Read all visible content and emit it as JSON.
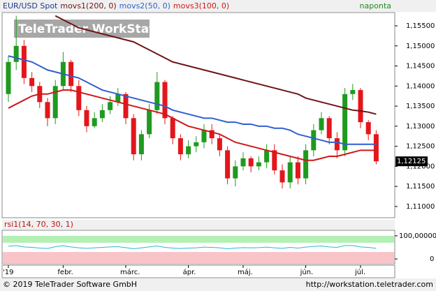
{
  "chart_data": {
    "type": "candlestick",
    "title": "EUR/USD Spot",
    "interval": "naponta",
    "watermark": "TeleTrader WorkStation",
    "up_color": "#1f9a1f",
    "down_color": "#e3161b",
    "categories": [
      "'19",
      null,
      null,
      null,
      null,
      null,
      null,
      "febr.",
      null,
      null,
      null,
      null,
      null,
      null,
      null,
      "márc.",
      null,
      null,
      null,
      null,
      null,
      null,
      null,
      "ápr.",
      null,
      null,
      null,
      null,
      null,
      null,
      "máj.",
      null,
      null,
      null,
      null,
      null,
      null,
      null,
      "jún.",
      null,
      null,
      null,
      null,
      null,
      null,
      "júl.",
      null,
      null
    ],
    "open": [
      1.138,
      1.146,
      1.15,
      1.142,
      1.14,
      1.136,
      1.132,
      1.14,
      1.146,
      1.14,
      1.134,
      1.13,
      1.132,
      1.134,
      1.136,
      1.138,
      1.132,
      1.123,
      1.128,
      1.134,
      1.141,
      1.132,
      1.127,
      1.123,
      1.125,
      1.126,
      1.129,
      1.127,
      1.124,
      1.117,
      1.12,
      1.122,
      1.12,
      1.121,
      1.124,
      1.119,
      1.116,
      1.121,
      1.117,
      1.124,
      1.129,
      1.132,
      1.127,
      1.124,
      1.138,
      1.139,
      1.131,
      1.128
    ],
    "high": [
      1.1475,
      1.1575,
      1.1515,
      1.1435,
      1.141,
      1.137,
      1.1415,
      1.1485,
      1.1465,
      1.1415,
      1.135,
      1.1335,
      1.1355,
      1.1375,
      1.1395,
      1.1385,
      1.133,
      1.129,
      1.1355,
      1.1435,
      1.1415,
      1.1325,
      1.128,
      1.1265,
      1.1275,
      1.1305,
      1.1305,
      1.128,
      1.125,
      1.1215,
      1.1235,
      1.1225,
      1.1225,
      1.1255,
      1.1255,
      1.1205,
      1.1225,
      1.1225,
      1.1255,
      1.1305,
      1.1335,
      1.1325,
      1.1285,
      1.1395,
      1.1405,
      1.1395,
      1.1315,
      1.129
    ],
    "low": [
      1.136,
      1.144,
      1.1405,
      1.1385,
      1.1345,
      1.13,
      1.1305,
      1.139,
      1.1385,
      1.1325,
      1.1285,
      1.1295,
      1.131,
      1.133,
      1.135,
      1.1305,
      1.1215,
      1.1215,
      1.127,
      1.133,
      1.1305,
      1.1255,
      1.1215,
      1.122,
      1.1235,
      1.1245,
      1.1255,
      1.1225,
      1.1155,
      1.115,
      1.119,
      1.1185,
      1.119,
      1.1195,
      1.118,
      1.1145,
      1.1145,
      1.1155,
      1.1155,
      1.1225,
      1.128,
      1.1255,
      1.122,
      1.1225,
      1.1365,
      1.1295,
      1.1265,
      1.1205
    ],
    "close": [
      1.146,
      1.15,
      1.142,
      1.14,
      1.136,
      1.132,
      1.14,
      1.146,
      1.14,
      1.134,
      1.13,
      1.132,
      1.134,
      1.136,
      1.138,
      1.132,
      1.123,
      1.128,
      1.134,
      1.141,
      1.132,
      1.127,
      1.123,
      1.125,
      1.126,
      1.129,
      1.127,
      1.124,
      1.117,
      1.12,
      1.122,
      1.12,
      1.121,
      1.124,
      1.119,
      1.116,
      1.121,
      1.117,
      1.124,
      1.129,
      1.132,
      1.127,
      1.124,
      1.138,
      1.139,
      1.131,
      1.128,
      1.12125
    ],
    "series": [
      {
        "name": "movs1(200, 0)",
        "color": "#6e1414",
        "values": [
          null,
          null,
          null,
          null,
          null,
          null,
          1.1575,
          1.1565,
          1.1555,
          1.1545,
          1.154,
          1.1535,
          1.153,
          1.1525,
          1.152,
          1.1515,
          1.151,
          1.15,
          1.149,
          1.148,
          1.147,
          1.146,
          1.1455,
          1.145,
          1.1445,
          1.144,
          1.1435,
          1.143,
          1.1425,
          1.142,
          1.1415,
          1.141,
          1.1405,
          1.14,
          1.1395,
          1.139,
          1.1385,
          1.138,
          1.137,
          1.1365,
          1.136,
          1.1355,
          1.135,
          1.1345,
          1.134,
          1.1338,
          1.1335,
          1.133
        ]
      },
      {
        "name": "movs2(50, 0)",
        "color": "#2f5fd0",
        "values": [
          1.1475,
          1.147,
          1.1465,
          1.146,
          1.145,
          1.144,
          1.1435,
          1.143,
          1.1425,
          1.142,
          1.141,
          1.14,
          1.139,
          1.1385,
          1.138,
          1.1375,
          1.137,
          1.1365,
          1.136,
          1.1355,
          1.135,
          1.134,
          1.1335,
          1.133,
          1.1325,
          1.132,
          1.132,
          1.1315,
          1.131,
          1.131,
          1.1305,
          1.1305,
          1.13,
          1.13,
          1.1295,
          1.1295,
          1.129,
          1.128,
          1.1275,
          1.127,
          1.1265,
          1.126,
          1.126,
          1.1255,
          1.1255,
          1.1255,
          1.1255,
          1.1255
        ]
      },
      {
        "name": "movs3(100, 0)",
        "color": "#d01818",
        "values": [
          1.1345,
          1.1355,
          1.1365,
          1.1375,
          1.138,
          1.138,
          1.1385,
          1.139,
          1.139,
          1.1385,
          1.138,
          1.1375,
          1.137,
          1.1365,
          1.136,
          1.1355,
          1.135,
          1.1345,
          1.134,
          1.1335,
          1.133,
          1.132,
          1.131,
          1.13,
          1.1295,
          1.129,
          1.1285,
          1.128,
          1.127,
          1.126,
          1.1255,
          1.125,
          1.1245,
          1.124,
          1.1235,
          1.123,
          1.1225,
          1.122,
          1.1215,
          1.1215,
          1.122,
          1.1225,
          1.1225,
          1.123,
          1.1235,
          1.124,
          1.124,
          1.124
        ]
      }
    ],
    "ylim": [
      1.1072,
      1.1583
    ],
    "yticks": [
      {
        "value": 1.11,
        "label": "1,11000"
      },
      {
        "value": 1.115,
        "label": "1,11500"
      },
      {
        "value": 1.12,
        "label": "1,12000"
      },
      {
        "value": 1.125,
        "label": "1,12500"
      },
      {
        "value": 1.13,
        "label": "1,13000"
      },
      {
        "value": 1.135,
        "label": "1,13500"
      },
      {
        "value": 1.14,
        "label": "1,14000"
      },
      {
        "value": 1.145,
        "label": "1,14500"
      },
      {
        "value": 1.15,
        "label": "1,15000"
      },
      {
        "value": 1.155,
        "label": "1,15500"
      }
    ],
    "last_label": {
      "value": 1.12125,
      "label": "1,12125"
    },
    "rsi": {
      "title": "rsi1(14, 70, 30, 1)",
      "color": "#2ab8d8",
      "values": [
        55,
        58,
        52,
        50,
        47,
        45,
        53,
        57,
        52,
        48,
        46,
        48,
        50,
        52,
        53,
        49,
        44,
        48,
        52,
        56,
        50,
        47,
        45,
        47,
        48,
        51,
        50,
        48,
        44,
        47,
        49,
        48,
        49,
        51,
        48,
        46,
        50,
        47,
        51,
        54,
        56,
        52,
        50,
        58,
        58,
        52,
        50,
        46
      ],
      "ylim": [
        -21,
        124
      ],
      "yticks": [
        {
          "value": 100,
          "label": "100,00000"
        },
        0
      ],
      "bands": [
        {
          "from": 70,
          "to": 100,
          "color": "#b4f0b4"
        },
        {
          "from": -21,
          "to": 30,
          "color": "#f8c4c8"
        }
      ]
    }
  },
  "footer": {
    "copyright": "© 2019 TeleTrader Software GmbH",
    "url": "http://workstation.teletrader.com"
  }
}
